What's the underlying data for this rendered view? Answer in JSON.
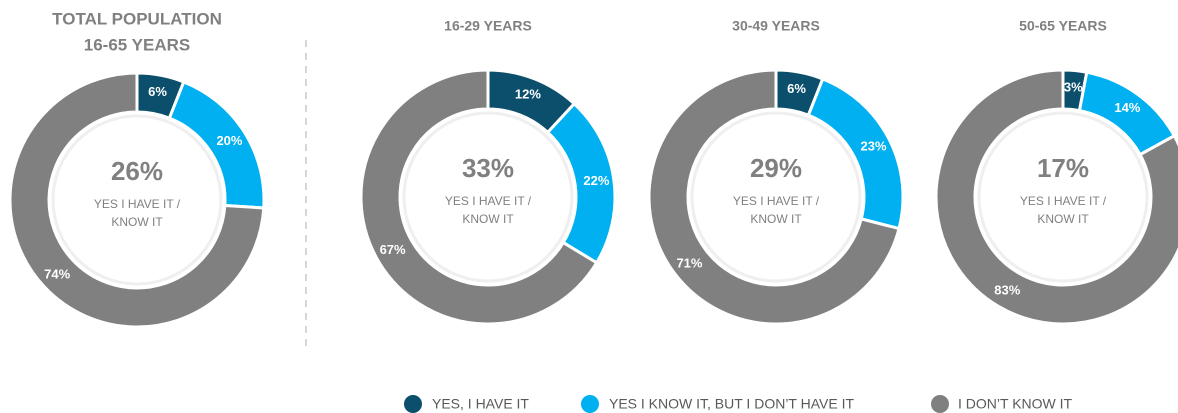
{
  "legend": [
    {
      "name": "YES, I HAVE IT",
      "color": "#0b4f6c"
    },
    {
      "name": "YES I KNOW IT, BUT I DON’T HAVE IT",
      "color": "#00b0f0"
    },
    {
      "name": "I DON’T KNOW IT",
      "color": "#808080"
    }
  ],
  "chart_data": [
    {
      "type": "donut",
      "title": [
        "TOTAL POPULATION",
        "16-65 YEARS"
      ],
      "values": [
        6,
        20,
        74
      ],
      "value_labels": [
        "6%",
        "20%",
        "74%"
      ],
      "center_value": "26%",
      "center_text": [
        "YES I HAVE IT /",
        "KNOW IT"
      ]
    },
    {
      "type": "donut",
      "title": [
        "16-29 YEARS"
      ],
      "values": [
        12,
        22,
        67
      ],
      "value_labels": [
        "12%",
        "22%",
        "67%"
      ],
      "center_value": "33%",
      "center_text": [
        "YES I HAVE IT /",
        "KNOW IT"
      ]
    },
    {
      "type": "donut",
      "title": [
        "30-49 YEARS"
      ],
      "values": [
        6,
        23,
        71
      ],
      "value_labels": [
        "6%",
        "23%",
        "71%"
      ],
      "center_value": "29%",
      "center_text": [
        "YES I HAVE IT /",
        "KNOW IT"
      ]
    },
    {
      "type": "donut",
      "title": [
        "50-65 YEARS"
      ],
      "values": [
        3,
        14,
        83
      ],
      "value_labels": [
        "3%",
        "14%",
        "83%"
      ],
      "center_value": "17%",
      "center_text": [
        "YES I HAVE IT /",
        "KNOW IT"
      ]
    }
  ]
}
